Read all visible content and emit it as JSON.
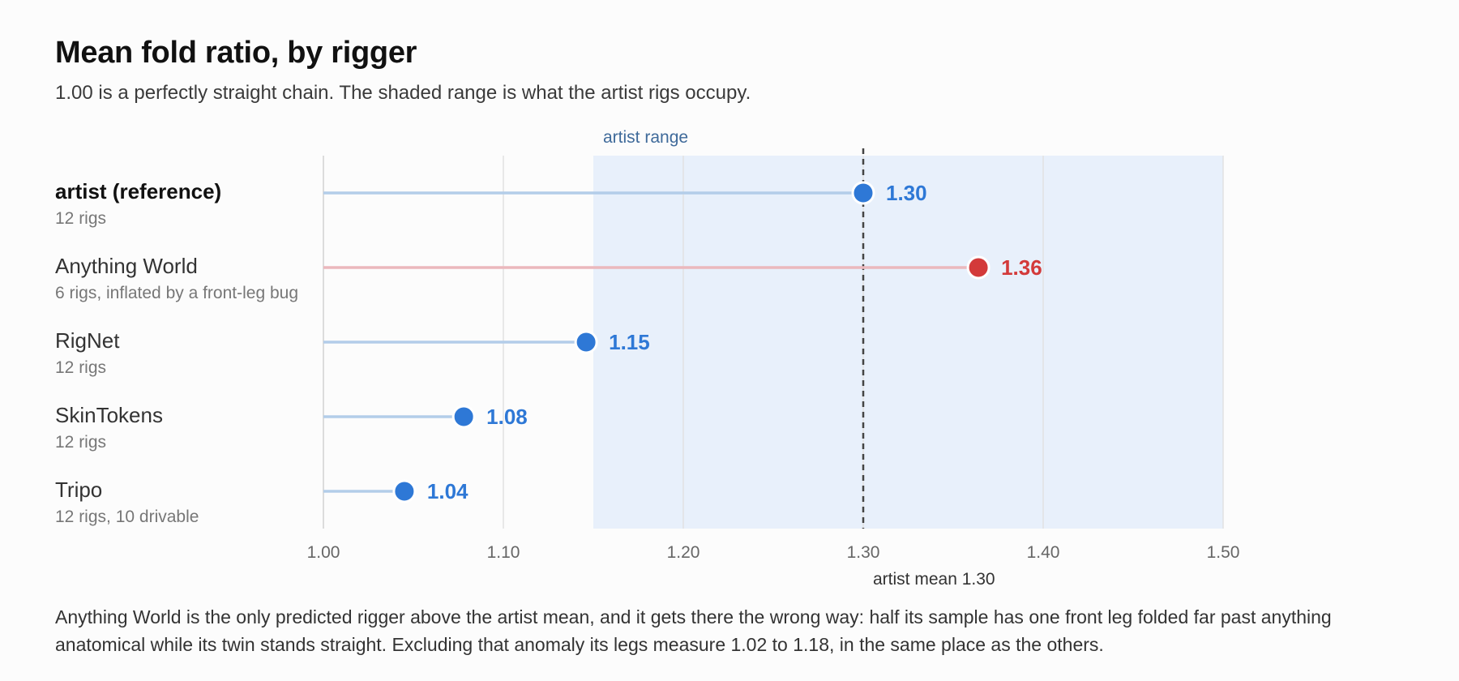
{
  "title": "Mean fold ratio, by rigger",
  "subtitle": "1.00 is a perfectly straight chain. The shaded range is what the artist rigs occupy.",
  "footnote": "Anything World is the only predicted rigger above the artist mean, and it gets there the wrong way: half its sample has one front leg folded far past anything anatomical while its twin stands straight. Excluding that anomaly its legs measure 1.02 to 1.18, in the same place as the others.",
  "chart_data": {
    "type": "lollipop",
    "title": "Mean fold ratio, by rigger",
    "subtitle": "1.00 is a perfectly straight chain. The shaded range is what the artist rigs occupy.",
    "xlim": [
      1.0,
      1.5
    ],
    "xticks": [
      "1.00",
      "1.10",
      "1.20",
      "1.30",
      "1.40",
      "1.50"
    ],
    "xtick_values": [
      1.0,
      1.1,
      1.2,
      1.3,
      1.4,
      1.5
    ],
    "grid": true,
    "shaded_range": {
      "label": "artist range",
      "from": 1.15,
      "to": 1.5
    },
    "reference_line": {
      "label": "artist mean 1.30",
      "value": 1.3
    },
    "series": [
      {
        "name": "artist (reference)",
        "note": "12 rigs",
        "value": 1.3,
        "label": "1.30",
        "bold": true,
        "color": "#2e78d6"
      },
      {
        "name": "Anything World",
        "note": "6 rigs, inflated by a front-leg bug",
        "value": 1.364,
        "label": "1.36",
        "bold": false,
        "color": "#d33a3a"
      },
      {
        "name": "RigNet",
        "note": "12 rigs",
        "value": 1.146,
        "label": "1.15",
        "bold": false,
        "color": "#2e78d6"
      },
      {
        "name": "SkinTokens",
        "note": "12 rigs",
        "value": 1.078,
        "label": "1.08",
        "bold": false,
        "color": "#2e78d6"
      },
      {
        "name": "Tripo",
        "note": "12 rigs, 10 drivable",
        "value": 1.045,
        "label": "1.04",
        "bold": false,
        "color": "#2e78d6"
      }
    ]
  }
}
